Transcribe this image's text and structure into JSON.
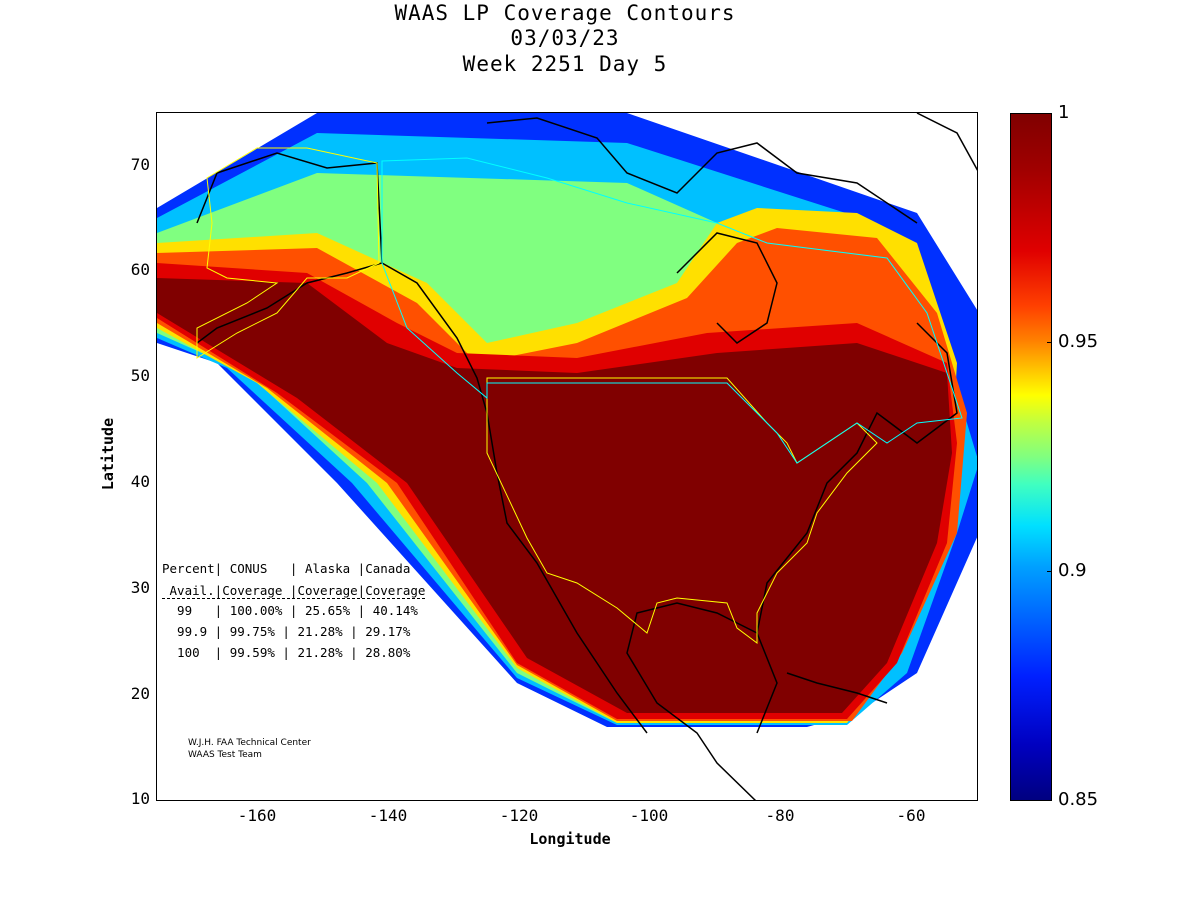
{
  "title": {
    "line1": "WAAS LP Coverage Contours",
    "line2": "03/03/23",
    "line3": "Week 2251 Day 5"
  },
  "axes": {
    "xlabel": "Longitude",
    "ylabel": "Latitude",
    "x_ticks": [
      "-160",
      "-140",
      "-120",
      "-100",
      "-80",
      "-60"
    ],
    "y_ticks": [
      "70",
      "60",
      "50",
      "40",
      "30",
      "20",
      "10"
    ],
    "xlim": [
      -175,
      -50
    ],
    "ylim": [
      10,
      75
    ]
  },
  "colorbar": {
    "ticks": [
      "1",
      "0.95",
      "0.9",
      "0.85"
    ],
    "range": [
      0.85,
      1.0
    ],
    "colormap": "jet"
  },
  "stats_table": {
    "header1": "Percent| CONUS   | Alaska |Canada",
    "header2": " Avail.|Coverage |Coverage|Coverage",
    "rows": [
      "  99   | 100.00% | 25.65% | 40.14%",
      "  99.9 | 99.75% | 21.28% | 29.17%",
      "  100  | 99.59% | 21.28% | 28.80%"
    ]
  },
  "credit": {
    "line1": "W.J.H. FAA Technical Center",
    "line2": "WAAS Test Team"
  },
  "colors": {
    "full_coverage": "#800000",
    "region_outline": "#ffff00",
    "border_outline": "#00ffff"
  }
}
